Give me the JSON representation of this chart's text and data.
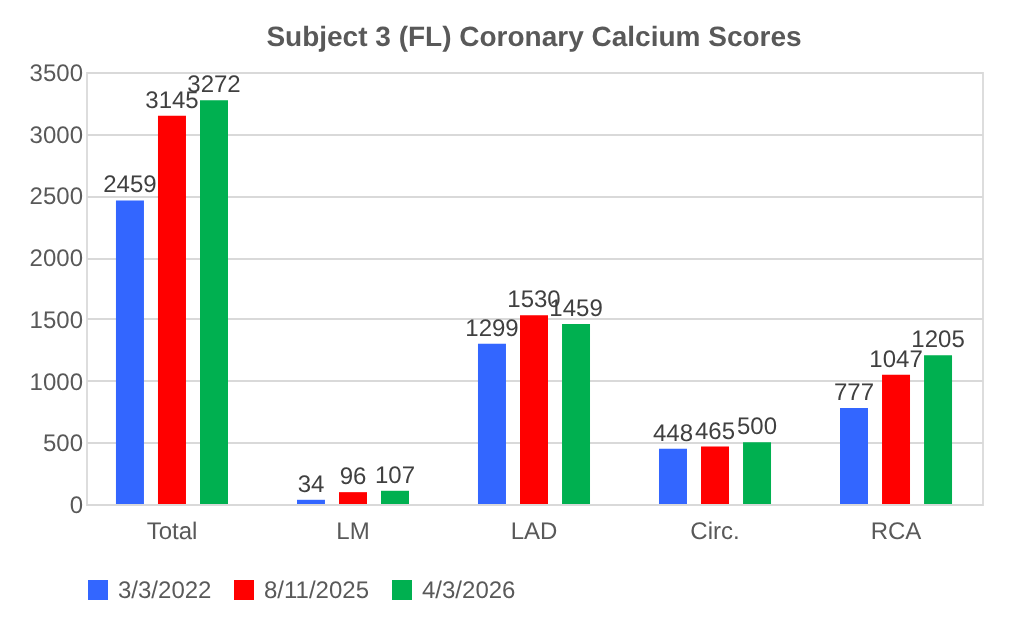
{
  "chart_data": {
    "type": "bar",
    "title": "Subject 3 (FL) Coronary Calcium Scores",
    "categories": [
      "Total",
      "LM",
      "LAD",
      "Circ.",
      "RCA"
    ],
    "series": [
      {
        "name": "3/3/2022",
        "color": "#3366ff",
        "values": [
          2459,
          34,
          1299,
          448,
          777
        ]
      },
      {
        "name": "8/11/2025",
        "color": "#ff0000",
        "values": [
          3145,
          96,
          1530,
          465,
          1047
        ]
      },
      {
        "name": "4/3/2026",
        "color": "#00b050",
        "values": [
          3272,
          107,
          1459,
          500,
          1205
        ]
      }
    ],
    "ylim": [
      0,
      3500
    ],
    "yticks": [
      0,
      500,
      1000,
      1500,
      2000,
      2500,
      3000,
      3500
    ],
    "grid": "y",
    "legend": "bottom",
    "data_labels": true
  }
}
